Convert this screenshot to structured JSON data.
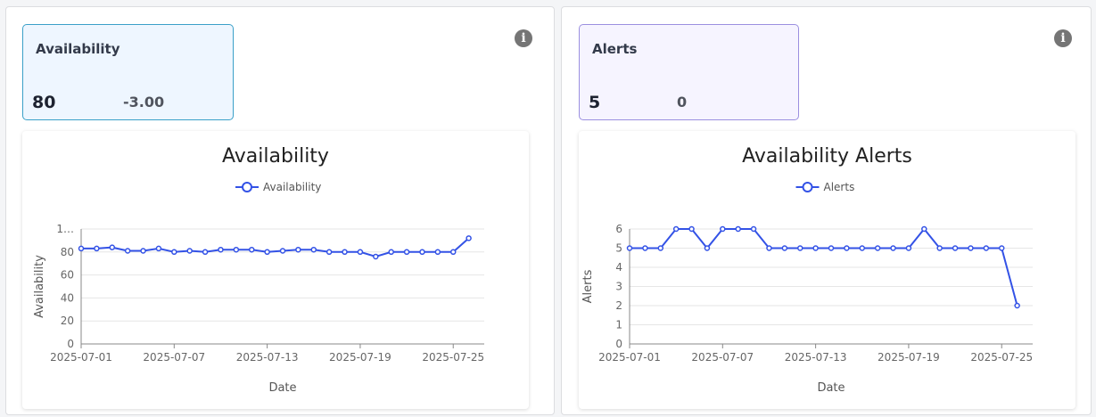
{
  "cards": [
    {
      "title": "Availability",
      "value": 80,
      "change": "-3.00"
    },
    {
      "title": "Alerts",
      "value": 5,
      "change": "0"
    }
  ],
  "chart_data": [
    {
      "type": "line",
      "title": "Availability",
      "x_label": "Date",
      "y_label": "Availability",
      "x": [
        "2025-07-01",
        "2025-07-02",
        "2025-07-03",
        "2025-07-04",
        "2025-07-05",
        "2025-07-06",
        "2025-07-07",
        "2025-07-08",
        "2025-07-09",
        "2025-07-10",
        "2025-07-11",
        "2025-07-12",
        "2025-07-13",
        "2025-07-14",
        "2025-07-15",
        "2025-07-16",
        "2025-07-17",
        "2025-07-18",
        "2025-07-19",
        "2025-07-20",
        "2025-07-21",
        "2025-07-22",
        "2025-07-23",
        "2025-07-24",
        "2025-07-25",
        "2025-07-26"
      ],
      "xlim": [
        "2025-07-01",
        "2025-07-27"
      ],
      "xticks": [
        "2025-07-01",
        "2025-07-07",
        "2025-07-13",
        "2025-07-19",
        "2025-07-25"
      ],
      "ylim": [
        0,
        100
      ],
      "yticks": [
        0,
        20,
        40,
        60,
        80,
        {
          "value": 100,
          "label": "1…"
        }
      ],
      "grid": true,
      "series": [
        {
          "name": "Availability",
          "color": "#3352e6",
          "values": [
            83,
            83,
            84,
            81,
            81,
            83,
            80,
            81,
            80,
            82,
            82,
            82,
            80,
            81,
            82,
            82,
            80,
            80,
            80,
            76,
            80,
            80,
            80,
            80,
            80,
            92
          ]
        }
      ]
    },
    {
      "type": "line",
      "title": "Availability Alerts",
      "x_label": "Date",
      "y_label": "Alerts",
      "x": [
        "2025-07-01",
        "2025-07-02",
        "2025-07-03",
        "2025-07-04",
        "2025-07-05",
        "2025-07-06",
        "2025-07-07",
        "2025-07-08",
        "2025-07-09",
        "2025-07-10",
        "2025-07-11",
        "2025-07-12",
        "2025-07-13",
        "2025-07-14",
        "2025-07-15",
        "2025-07-16",
        "2025-07-17",
        "2025-07-18",
        "2025-07-19",
        "2025-07-20",
        "2025-07-21",
        "2025-07-22",
        "2025-07-23",
        "2025-07-24",
        "2025-07-25",
        "2025-07-26"
      ],
      "xlim": [
        "2025-07-01",
        "2025-07-27"
      ],
      "xticks": [
        "2025-07-01",
        "2025-07-07",
        "2025-07-13",
        "2025-07-19",
        "2025-07-25"
      ],
      "ylim": [
        0,
        6
      ],
      "yticks": [
        0,
        1,
        2,
        3,
        4,
        5,
        6
      ],
      "grid": true,
      "series": [
        {
          "name": "Alerts",
          "color": "#3352e6",
          "values": [
            5,
            5,
            5,
            6,
            6,
            5,
            6,
            6,
            6,
            5,
            5,
            5,
            5,
            5,
            5,
            5,
            5,
            5,
            5,
            6,
            5,
            5,
            5,
            5,
            5,
            2
          ]
        }
      ]
    }
  ]
}
